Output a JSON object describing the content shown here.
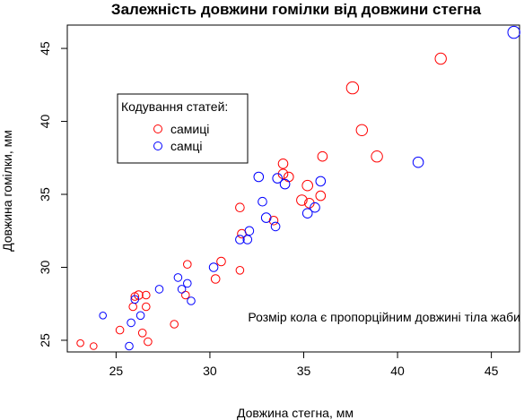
{
  "chart_data": {
    "type": "scatter",
    "title": "Залежність довжини гомілки від довжини стегна",
    "xlabel": "Довжина стегна, мм",
    "ylabel": "Довжина гомілки, мм",
    "xlim": [
      22.4,
      46.5
    ],
    "ylim": [
      24.2,
      46.6
    ],
    "xticks": [
      25,
      30,
      35,
      40,
      45
    ],
    "yticks": [
      25,
      30,
      35,
      40,
      45
    ],
    "annotation": "Розмір кола є пропорційним довжині тіла жаби",
    "legend": {
      "title": "Кодування статей:",
      "placement": "top-left",
      "entries": [
        {
          "label": "самиці",
          "color": "#ff0000"
        },
        {
          "label": "самці",
          "color": "#0000ff"
        }
      ]
    },
    "size_encoding": "body-length",
    "series": [
      {
        "name": "самиці",
        "color": "#ff0000",
        "points": [
          {
            "x": 23.1,
            "y": 24.8,
            "s": 0.4
          },
          {
            "x": 23.8,
            "y": 24.6,
            "s": 0.4
          },
          {
            "x": 25.2,
            "y": 25.7,
            "s": 0.45
          },
          {
            "x": 25.9,
            "y": 27.3,
            "s": 0.45
          },
          {
            "x": 26.0,
            "y": 28.0,
            "s": 0.45
          },
          {
            "x": 26.2,
            "y": 28.1,
            "s": 0.5
          },
          {
            "x": 26.4,
            "y": 25.5,
            "s": 0.45
          },
          {
            "x": 26.6,
            "y": 28.1,
            "s": 0.45
          },
          {
            "x": 26.6,
            "y": 27.3,
            "s": 0.45
          },
          {
            "x": 26.7,
            "y": 24.9,
            "s": 0.45
          },
          {
            "x": 28.1,
            "y": 26.1,
            "s": 0.45
          },
          {
            "x": 28.7,
            "y": 28.1,
            "s": 0.45
          },
          {
            "x": 28.8,
            "y": 30.2,
            "s": 0.45
          },
          {
            "x": 30.3,
            "y": 29.2,
            "s": 0.5
          },
          {
            "x": 30.6,
            "y": 30.4,
            "s": 0.5
          },
          {
            "x": 31.6,
            "y": 29.8,
            "s": 0.45
          },
          {
            "x": 31.6,
            "y": 34.1,
            "s": 0.5
          },
          {
            "x": 31.7,
            "y": 32.3,
            "s": 0.5
          },
          {
            "x": 33.4,
            "y": 33.2,
            "s": 0.5
          },
          {
            "x": 33.9,
            "y": 36.4,
            "s": 0.55
          },
          {
            "x": 33.9,
            "y": 37.1,
            "s": 0.55
          },
          {
            "x": 34.2,
            "y": 36.2,
            "s": 0.55
          },
          {
            "x": 34.9,
            "y": 34.6,
            "s": 0.6
          },
          {
            "x": 35.2,
            "y": 35.6,
            "s": 0.6
          },
          {
            "x": 35.3,
            "y": 34.4,
            "s": 0.55
          },
          {
            "x": 35.9,
            "y": 34.9,
            "s": 0.55
          },
          {
            "x": 36.0,
            "y": 37.6,
            "s": 0.55
          },
          {
            "x": 37.6,
            "y": 42.3,
            "s": 0.7
          },
          {
            "x": 38.1,
            "y": 39.4,
            "s": 0.65
          },
          {
            "x": 38.9,
            "y": 37.6,
            "s": 0.65
          },
          {
            "x": 42.3,
            "y": 44.3,
            "s": 0.65
          }
        ]
      },
      {
        "name": "самці",
        "color": "#0000ff",
        "points": [
          {
            "x": 24.3,
            "y": 26.7,
            "s": 0.4
          },
          {
            "x": 25.7,
            "y": 24.6,
            "s": 0.45
          },
          {
            "x": 25.8,
            "y": 26.2,
            "s": 0.45
          },
          {
            "x": 26.0,
            "y": 27.8,
            "s": 0.45
          },
          {
            "x": 26.3,
            "y": 26.7,
            "s": 0.45
          },
          {
            "x": 27.3,
            "y": 28.5,
            "s": 0.45
          },
          {
            "x": 28.3,
            "y": 29.3,
            "s": 0.45
          },
          {
            "x": 28.5,
            "y": 28.5,
            "s": 0.45
          },
          {
            "x": 28.8,
            "y": 28.9,
            "s": 0.45
          },
          {
            "x": 29.0,
            "y": 27.7,
            "s": 0.45
          },
          {
            "x": 30.2,
            "y": 30.0,
            "s": 0.5
          },
          {
            "x": 31.6,
            "y": 31.9,
            "s": 0.5
          },
          {
            "x": 32.0,
            "y": 31.9,
            "s": 0.5
          },
          {
            "x": 32.1,
            "y": 32.5,
            "s": 0.5
          },
          {
            "x": 32.6,
            "y": 36.2,
            "s": 0.55
          },
          {
            "x": 32.8,
            "y": 34.5,
            "s": 0.5
          },
          {
            "x": 33.0,
            "y": 33.4,
            "s": 0.55
          },
          {
            "x": 33.5,
            "y": 32.8,
            "s": 0.5
          },
          {
            "x": 33.6,
            "y": 36.1,
            "s": 0.55
          },
          {
            "x": 34.0,
            "y": 35.7,
            "s": 0.55
          },
          {
            "x": 35.2,
            "y": 33.7,
            "s": 0.55
          },
          {
            "x": 35.6,
            "y": 34.1,
            "s": 0.55
          },
          {
            "x": 35.9,
            "y": 35.9,
            "s": 0.55
          },
          {
            "x": 41.1,
            "y": 37.2,
            "s": 0.6
          },
          {
            "x": 46.2,
            "y": 46.1,
            "s": 0.7
          }
        ]
      }
    ]
  }
}
